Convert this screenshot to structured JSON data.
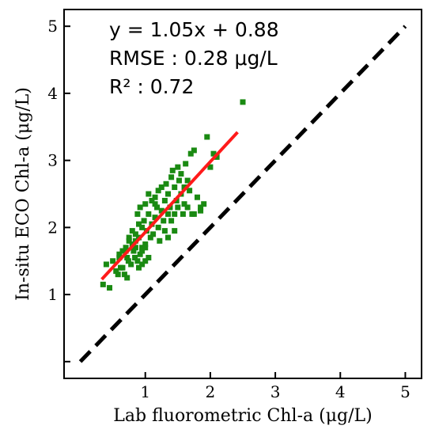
{
  "chart_data": {
    "type": "scatter",
    "title": "",
    "xlabel": "Lab fluorometric Chl-a (μg/L)",
    "ylabel": "In-situ ECO Chl-a (μg/L)",
    "xlim": [
      -0.25,
      5.25
    ],
    "ylim": [
      -0.25,
      5.25
    ],
    "xticks": [
      1,
      2,
      3,
      4,
      5
    ],
    "yticks": [
      0,
      1,
      2,
      3,
      4,
      5
    ],
    "xtick_labels": [
      "1",
      "2",
      "3",
      "4",
      "5"
    ],
    "ytick_labels": [
      "",
      "1",
      "2",
      "3",
      "4",
      "5"
    ],
    "grid": false,
    "annotations": [
      "y = 1.05x + 0.88",
      "RMSE : 0.28 μg/L",
      "R² : 0.72"
    ],
    "colors": {
      "points": "#1a8a12",
      "fit": "#ff1a1a",
      "identity": "#000000"
    },
    "series": [
      {
        "kind": "points",
        "marker": "square",
        "x": [
          0.35,
          0.4,
          0.45,
          0.5,
          0.55,
          0.6,
          0.62,
          0.65,
          0.68,
          0.7,
          0.72,
          0.74,
          0.75,
          0.78,
          0.8,
          0.82,
          0.84,
          0.85,
          0.88,
          0.88,
          0.9,
          0.9,
          0.92,
          0.92,
          0.95,
          0.95,
          0.98,
          1.0,
          1.0,
          1.0,
          1.02,
          1.05,
          1.05,
          1.08,
          1.1,
          1.1,
          1.12,
          1.15,
          1.15,
          1.18,
          1.2,
          1.2,
          1.22,
          1.25,
          1.25,
          1.28,
          1.3,
          1.3,
          1.32,
          1.35,
          1.35,
          1.38,
          1.4,
          1.4,
          1.42,
          1.45,
          1.45,
          1.48,
          1.5,
          1.5,
          1.52,
          1.55,
          1.55,
          1.58,
          1.6,
          1.62,
          1.65,
          1.65,
          1.68,
          1.7,
          1.72,
          1.75,
          1.8,
          1.85,
          1.9,
          1.95,
          2.0,
          2.05,
          2.1,
          2.5,
          0.8,
          0.85,
          0.9,
          0.95,
          0.95,
          1.0,
          0.7,
          0.75,
          1.05,
          1.15,
          1.35,
          1.45,
          1.6,
          1.75,
          1.85,
          0.6,
          0.58,
          0.65,
          0.72,
          0.85
        ],
        "y": [
          1.15,
          1.45,
          1.1,
          1.5,
          1.35,
          1.6,
          1.4,
          1.65,
          1.3,
          1.7,
          1.55,
          1.5,
          1.8,
          1.45,
          1.75,
          1.65,
          1.55,
          1.9,
          1.5,
          2.2,
          1.4,
          1.85,
          1.6,
          2.3,
          1.7,
          2.0,
          2.1,
          1.5,
          1.75,
          2.35,
          1.95,
          2.2,
          2.5,
          1.85,
          2.05,
          2.4,
          1.9,
          2.15,
          2.45,
          2.3,
          2.0,
          2.55,
          1.8,
          2.25,
          2.6,
          2.1,
          1.95,
          2.4,
          2.65,
          2.2,
          2.5,
          2.3,
          2.1,
          2.75,
          2.85,
          2.2,
          2.6,
          2.4,
          2.3,
          2.9,
          2.7,
          2.5,
          2.8,
          2.2,
          2.6,
          2.95,
          2.3,
          2.7,
          2.55,
          3.1,
          2.2,
          3.15,
          2.45,
          2.25,
          2.35,
          3.35,
          2.9,
          3.1,
          3.05,
          3.87,
          1.95,
          1.8,
          2.05,
          1.45,
          1.65,
          1.7,
          1.65,
          1.85,
          1.55,
          2.35,
          1.85,
          1.95,
          2.35,
          2.2,
          2.3,
          1.55,
          1.3,
          1.4,
          1.25,
          1.7
        ]
      },
      {
        "kind": "fit",
        "slope": 1.05,
        "intercept": 0.88,
        "x_range": [
          0.33,
          2.42
        ]
      },
      {
        "kind": "identity",
        "x_range": [
          0.0,
          5.0
        ]
      }
    ]
  }
}
